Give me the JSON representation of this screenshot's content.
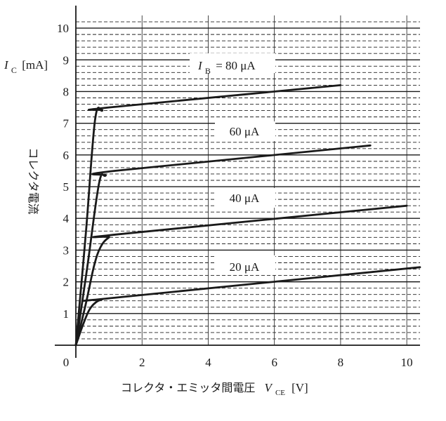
{
  "chart_data": {
    "type": "line",
    "title": "",
    "ylabel": {
      "symbol": "I",
      "sub": "C",
      "unit": "[mA]",
      "caption": "コレクタ電流"
    },
    "xlabel": {
      "caption": "コレクタ・エミッタ間電圧",
      "symbol": "V",
      "sub": "CE",
      "unit": "[V]"
    },
    "xlim": [
      0,
      10.4
    ],
    "ylim": [
      0,
      10.4
    ],
    "x_ticks": [
      "0",
      "2",
      "4",
      "6",
      "8",
      "10"
    ],
    "y_ticks": [
      "1",
      "2",
      "3",
      "4",
      "5",
      "6",
      "7",
      "8",
      "9",
      "10"
    ],
    "grid": {
      "major_y": true,
      "major_x": true,
      "minor_y_dashed_step": 0.2
    },
    "series": [
      {
        "name": "20 μA",
        "label_prefix": "",
        "label_value": "20 μA",
        "color": "#1a1a1a",
        "points": [
          [
            0,
            0
          ],
          [
            0.2,
            0.6
          ],
          [
            0.4,
            1.1
          ],
          [
            0.6,
            1.35
          ],
          [
            0.8,
            1.45
          ],
          [
            1,
            1.48
          ],
          [
            10.4,
            2.46
          ]
        ]
      },
      {
        "name": "40 μA",
        "label_prefix": "",
        "label_value": "40 μA",
        "color": "#1a1a1a",
        "points": [
          [
            0,
            0
          ],
          [
            0.3,
            1.3
          ],
          [
            0.55,
            2.5
          ],
          [
            0.75,
            3.1
          ],
          [
            1,
            3.4
          ],
          [
            1.3,
            3.5
          ],
          [
            10,
            4.4
          ]
        ]
      },
      {
        "name": "60 μA",
        "label_prefix": "",
        "label_value": "60 μA",
        "color": "#1a1a1a",
        "points": [
          [
            0,
            0
          ],
          [
            0.35,
            2.5
          ],
          [
            0.7,
            5.1
          ],
          [
            0.9,
            5.35
          ],
          [
            1.2,
            5.5
          ],
          [
            8.9,
            6.3
          ]
        ]
      },
      {
        "name": "80 μA",
        "label_prefix": "I_B =",
        "label_value": "80 μA",
        "color": "#1a1a1a",
        "points": [
          [
            0,
            0
          ],
          [
            0.3,
            3.5
          ],
          [
            0.58,
            7.1
          ],
          [
            0.8,
            7.4
          ],
          [
            1,
            7.5
          ],
          [
            8,
            8.2
          ]
        ]
      }
    ],
    "annotations": {
      "ib_symbol": "I",
      "ib_sub": "B",
      "ib_eq": "= 80 μA",
      "label_60": "60 μA",
      "label_40": "40 μA",
      "label_20": "20 μA"
    }
  }
}
